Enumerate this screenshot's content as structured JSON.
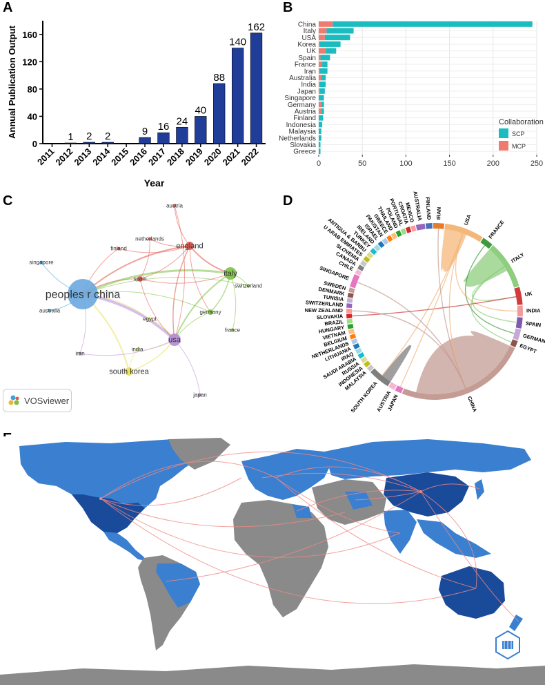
{
  "panel_labels": {
    "a": "A",
    "b": "B",
    "c": "C",
    "d": "D",
    "e": "E"
  },
  "vosviewer": {
    "label": "VOSviewer"
  },
  "colors": {
    "bar_blue": "#1f3d99",
    "scp": "#1bbcc0",
    "mcp": "#ef7b70",
    "ocean": "#ffffff",
    "land_none": "#8a8a8a",
    "land_light": "#3a7fd0",
    "land_dark": "#1a4a9a",
    "link": "#f08a84"
  },
  "chart_data": [
    {
      "id": "A",
      "type": "bar",
      "title": "",
      "xlabel": "Year",
      "ylabel": "Annual Publication Output",
      "categories": [
        "2011",
        "2012",
        "2013",
        "2014",
        "2015",
        "2016",
        "2017",
        "2018",
        "2019",
        "2020",
        "2021",
        "2022"
      ],
      "values": [
        0,
        1,
        2,
        2,
        0,
        9,
        16,
        24,
        40,
        88,
        140,
        162
      ],
      "data_labels": [
        "",
        "1",
        "2",
        "2",
        "",
        "9",
        "16",
        "24",
        "40",
        "88",
        "140",
        "162"
      ],
      "ylim": [
        0,
        180
      ],
      "yticks": [
        "0",
        "40",
        "80",
        "120",
        "160"
      ]
    },
    {
      "id": "B",
      "type": "bar",
      "orientation": "horizontal",
      "stacked": true,
      "categories": [
        "China",
        "Italy",
        "USA",
        "Korea",
        "UK",
        "Spain",
        "France",
        "Iran",
        "Australia",
        "India",
        "Japan",
        "Singapore",
        "Germany",
        "Austria",
        "Finland",
        "Indonesia",
        "Malaysia",
        "Netherlands",
        "Slovakia",
        "Greece"
      ],
      "series": [
        {
          "name": "SCP",
          "values": [
            229,
            31,
            29,
            24,
            12,
            11,
            6,
            9,
            5,
            7,
            6,
            6,
            3,
            3,
            5,
            4,
            3,
            3,
            2,
            2
          ]
        },
        {
          "name": "MCP",
          "values": [
            16,
            9,
            7,
            1,
            8,
            2,
            4,
            1,
            3,
            1,
            1,
            0,
            3,
            3,
            0,
            0,
            0,
            0,
            0,
            0
          ]
        }
      ],
      "legend_title": "Collaboration",
      "xlim": [
        0,
        250
      ],
      "xticks": [
        "0",
        "50",
        "100",
        "150",
        "200",
        "250"
      ]
    },
    {
      "id": "C",
      "type": "network",
      "nodes": [
        {
          "label": "peoples r china",
          "weight": 10
        },
        {
          "label": "italy",
          "weight": 4
        },
        {
          "label": "usa",
          "weight": 4
        },
        {
          "label": "england",
          "weight": 3
        },
        {
          "label": "south korea",
          "weight": 3
        },
        {
          "label": "spain",
          "weight": 2
        },
        {
          "label": "germany",
          "weight": 2
        },
        {
          "label": "austria",
          "weight": 1
        },
        {
          "label": "netherlands",
          "weight": 1
        },
        {
          "label": "finland",
          "weight": 1
        },
        {
          "label": "singapore",
          "weight": 1
        },
        {
          "label": "australia",
          "weight": 1
        },
        {
          "label": "switzerland",
          "weight": 1
        },
        {
          "label": "egypt",
          "weight": 1
        },
        {
          "label": "france",
          "weight": 1
        },
        {
          "label": "india",
          "weight": 1
        },
        {
          "label": "iran",
          "weight": 1
        },
        {
          "label": "japan",
          "weight": 1
        }
      ]
    },
    {
      "id": "D",
      "type": "chord",
      "countries": [
        "USA",
        "FRANCE",
        "ITALY",
        "UK",
        "INDIA",
        "SPAIN",
        "GERMANY",
        "EGYPT",
        "CHINA",
        "JAPAN",
        "AUSTRIA",
        "SOUTH KOREA",
        "MALAYSIA",
        "INDONESIA",
        "RUSSIA",
        "SAUDI ARABIA",
        "IRAQ",
        "LITHUANIA",
        "NETHERLANDS",
        "BELGIUM",
        "VIETNAM",
        "HUNGARY",
        "BRAZIL",
        "SLOVAKIA",
        "NEW ZEALAND",
        "SWITZERLAND",
        "TUNISIA",
        "DENMARK",
        "SWEDEN",
        "SINGAPORE",
        "CHILE",
        "CANADA",
        "SLOVENIA",
        "U ARAB EMIRATES",
        "ANTIGUA & BARBU",
        "TURKEY",
        "IRELAND",
        "ISRAEL",
        "PAKISTAN",
        "GREECE",
        "THAILAND",
        "POLAND",
        "PORTUGAL",
        "CROATIA",
        "MEXICO",
        "AUSTRALIA",
        "FINLAND",
        "IRAN"
      ]
    }
  ]
}
